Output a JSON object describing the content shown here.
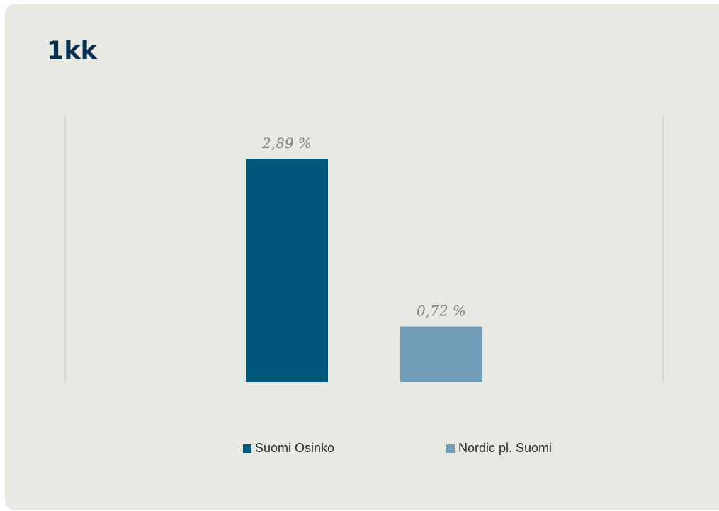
{
  "card": {
    "title": "1kk"
  },
  "colors": {
    "background": "#e9e9e3",
    "title": "#07304f",
    "series_1": "#01587b",
    "series_2": "#749db9",
    "data_label": "#808080",
    "axis_line": "#d3d3cd"
  },
  "chart_data": {
    "type": "bar",
    "title": "1kk",
    "categories": [
      "Suomi Osinko",
      "Nordic pl. Suomi"
    ],
    "values": [
      2.89,
      0.72
    ],
    "data_labels": [
      "2,89 %",
      "0,72 %"
    ],
    "ylim": [
      0,
      3.45
    ],
    "xlabel": "",
    "ylabel": "",
    "grid": false,
    "legend": "bottom",
    "legend_entries": [
      "Suomi Osinko",
      "Nordic pl. Suomi"
    ]
  }
}
